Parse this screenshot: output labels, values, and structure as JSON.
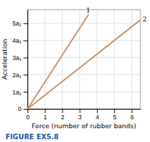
{
  "chart_data": {
    "type": "line",
    "x_label": "Force (number of rubber bands)",
    "y_label": "Acceleration",
    "annotations": [
      {
        "text": "FIGURE EX5.8"
      }
    ],
    "series": [
      {
        "name": "1",
        "color": "#C8906A",
        "x": [
          0,
          3.5
        ],
        "values": [
          0,
          5.5
        ]
      },
      {
        "name": "2",
        "color": "#C8906A",
        "x": [
          0,
          6.5
        ],
        "values": [
          0,
          5.2
        ]
      }
    ],
    "xlim": [
      0,
      6.5
    ],
    "ylim": [
      0,
      5.8
    ],
    "xticks": [
      0,
      1,
      2,
      3,
      4,
      5,
      6
    ],
    "yticks": [
      0,
      {
        "value": 1,
        "label": "1a₁"
      },
      {
        "value": 2,
        "label": "2a₁"
      },
      {
        "value": 3,
        "label": "3a₁"
      },
      {
        "value": 4,
        "label": "4a₁"
      },
      {
        "value": 5,
        "label": "5a₁"
      }
    ],
    "grid": true
  }
}
